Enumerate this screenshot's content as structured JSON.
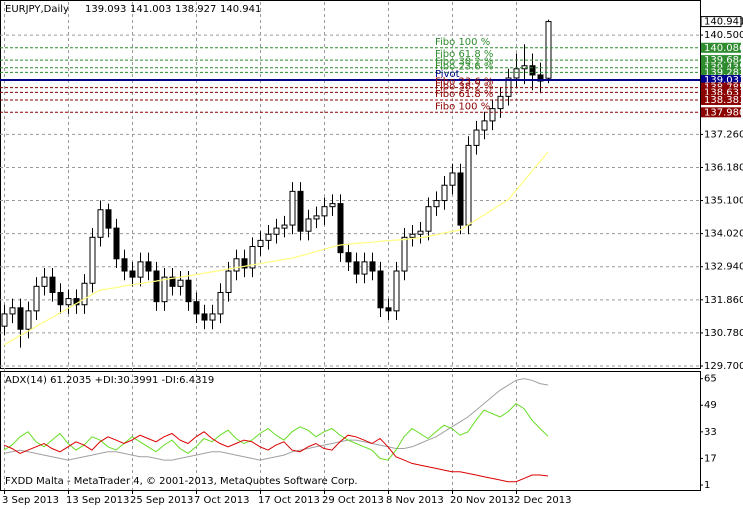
{
  "chart_data": [
    {
      "type": "candlestick",
      "title": "EURJPY,Daily",
      "categories": [
        "3 Sep 2013",
        null,
        null,
        null,
        null,
        null,
        null,
        null,
        "13 Sep 2013",
        null,
        null,
        null,
        null,
        null,
        null,
        null,
        "25 Sep 2013",
        null,
        null,
        null,
        null,
        null,
        null,
        null,
        "7 Oct 2013",
        null,
        null,
        null,
        null,
        null,
        null,
        null,
        "17 Oct 2013",
        null,
        null,
        null,
        null,
        null,
        null,
        null,
        "29 Oct 2013",
        null,
        null,
        null,
        null,
        null,
        null,
        null,
        "8 Nov 2013",
        null,
        null,
        null,
        null,
        null,
        null,
        null,
        "20 Nov 2013",
        null,
        null,
        null,
        null,
        null,
        null,
        null,
        "2 Dec 2013",
        null,
        null,
        null,
        null
      ],
      "open": [
        131.0,
        131.4,
        131.6,
        130.9,
        131.5,
        132.3,
        132.6,
        132.1,
        131.7,
        131.9,
        131.7,
        132.4,
        133.9,
        134.8,
        134.2,
        133.2,
        132.8,
        132.6,
        133.1,
        132.8,
        131.8,
        132.6,
        132.3,
        132.5,
        131.8,
        131.4,
        131.2,
        131.4,
        132.1,
        132.8,
        133.2,
        132.9,
        133.6,
        133.8,
        134.0,
        134.2,
        134.3,
        135.4,
        134.1,
        134.5,
        134.6,
        134.9,
        135.0,
        133.4,
        133.1,
        132.7,
        133.1,
        132.8,
        131.6,
        131.5,
        132.8,
        133.9,
        134.0,
        134.1,
        134.9,
        135.1,
        135.6,
        136.0,
        134.3,
        136.9,
        137.4,
        137.7,
        138.1,
        138.5,
        139.1,
        139.4,
        139.5,
        139.2,
        139.093
      ],
      "high": [
        131.7,
        131.9,
        131.9,
        131.8,
        132.6,
        132.9,
        132.9,
        132.4,
        132.2,
        132.2,
        132.7,
        134.2,
        135.1,
        135.0,
        134.5,
        133.5,
        133.1,
        133.4,
        133.4,
        133.1,
        132.9,
        132.9,
        132.8,
        132.8,
        132.1,
        131.7,
        131.7,
        132.4,
        133.1,
        133.5,
        133.5,
        133.9,
        134.1,
        134.3,
        134.5,
        134.6,
        135.7,
        135.7,
        134.8,
        134.9,
        135.2,
        135.3,
        135.3,
        133.7,
        133.4,
        133.4,
        133.4,
        133.1,
        131.9,
        133.1,
        134.2,
        134.3,
        134.4,
        135.2,
        135.4,
        135.9,
        136.3,
        136.3,
        137.2,
        137.7,
        138.0,
        138.4,
        138.8,
        139.4,
        139.9,
        140.2,
        139.9,
        139.6,
        141.003
      ],
      "low": [
        130.7,
        131.1,
        130.3,
        130.6,
        131.2,
        132.0,
        131.8,
        131.4,
        131.4,
        131.4,
        131.4,
        132.1,
        133.6,
        133.9,
        132.9,
        132.5,
        132.3,
        132.3,
        132.5,
        131.5,
        131.5,
        132.0,
        132.0,
        131.5,
        131.1,
        130.9,
        130.9,
        131.1,
        131.8,
        132.5,
        132.6,
        132.6,
        133.3,
        133.5,
        133.7,
        133.9,
        134.0,
        133.8,
        133.8,
        134.2,
        134.3,
        134.6,
        133.1,
        132.8,
        132.4,
        132.4,
        132.5,
        131.3,
        131.2,
        131.2,
        132.5,
        133.6,
        133.7,
        133.8,
        134.6,
        134.8,
        135.3,
        134.0,
        134.0,
        136.6,
        137.1,
        137.4,
        137.8,
        138.2,
        138.8,
        138.9,
        138.7,
        138.6,
        138.927
      ],
      "close": [
        131.4,
        131.6,
        130.9,
        131.5,
        132.3,
        132.6,
        132.1,
        131.7,
        131.9,
        131.7,
        132.4,
        133.9,
        134.8,
        134.2,
        133.2,
        132.8,
        132.6,
        133.1,
        132.8,
        131.8,
        132.6,
        132.3,
        132.5,
        131.8,
        131.4,
        131.2,
        131.4,
        132.1,
        132.8,
        133.2,
        132.9,
        133.6,
        133.8,
        134.0,
        134.2,
        134.3,
        135.4,
        134.1,
        134.5,
        134.6,
        134.9,
        135.0,
        133.4,
        133.1,
        132.7,
        133.1,
        132.8,
        131.6,
        131.5,
        132.8,
        133.9,
        134.0,
        134.1,
        134.9,
        135.1,
        135.6,
        136.0,
        134.3,
        136.9,
        137.4,
        137.7,
        138.1,
        138.5,
        139.1,
        139.4,
        139.5,
        139.2,
        139.0,
        140.941
      ],
      "up_color": "#ffffff",
      "down_color": "#000000",
      "ma": {
        "color": "#ffff80",
        "values": [
          130.39,
          130.54,
          130.69,
          130.84,
          130.99,
          131.14,
          131.28,
          131.43,
          131.58,
          131.73,
          131.88,
          132.03,
          132.18,
          132.22,
          132.26,
          132.31,
          132.35,
          132.39,
          132.43,
          132.47,
          132.52,
          132.56,
          132.6,
          132.64,
          132.68,
          132.73,
          132.77,
          132.82,
          132.86,
          132.91,
          132.95,
          133.0,
          133.04,
          133.09,
          133.13,
          133.18,
          133.22,
          133.29,
          133.36,
          133.44,
          133.51,
          133.58,
          133.65,
          133.67,
          133.7,
          133.72,
          133.74,
          133.77,
          133.79,
          133.81,
          133.83,
          133.86,
          133.88,
          133.93,
          133.98,
          134.04,
          134.09,
          134.14,
          134.3,
          134.47,
          134.63,
          134.79,
          134.96,
          135.12,
          135.43,
          135.74,
          136.06,
          136.37,
          136.68
        ]
      },
      "ylim": [
        129.635,
        141.58
      ],
      "yticks": [
        {
          "value": 129.7,
          "label": "129.700"
        },
        {
          "value": 130.78,
          "label": "130.780"
        },
        {
          "value": 131.86,
          "label": "131.860"
        },
        {
          "value": 132.94,
          "label": "132.940"
        },
        {
          "value": 134.02,
          "label": "134.020"
        },
        {
          "value": 135.1,
          "label": "135.100"
        },
        {
          "value": 136.18,
          "label": "136.180"
        },
        {
          "value": 137.26,
          "label": "137.260"
        },
        {
          "value": 140.5,
          "label": "140.500"
        }
      ],
      "grid": true,
      "levels": {
        "names": [
          "Fibo 100 %",
          "Fibo 61.8 %",
          "Fibo 38.2 %",
          "Fibo 23.6 %",
          "Pivot",
          "Fibo 23.6 %",
          "Fibo 38.2 %",
          "Fibo 61.8 %",
          "Fibo 100 %"
        ],
        "values": [
          140.086,
          139.684,
          139.435,
          139.282,
          139.033,
          138.785,
          138.631,
          138.383,
          137.98
        ],
        "value_labels": [
          "140.086",
          "139.684",
          "139.435",
          "139.282",
          "139.033",
          "138.785",
          "138.631",
          "138.383",
          "137.980"
        ],
        "colors": [
          "#2e8b2e",
          "#2e8b2e",
          "#2e8b2e",
          "#2e8b2e",
          "#00008b",
          "#8b0000",
          "#8b0000",
          "#8b0000",
          "#8b0000"
        ]
      }
    },
    {
      "type": "line",
      "title": "ADX(14) 61.2035 +DI:30.3991 -DI:6.4319",
      "series": [
        {
          "color": "#a0a0a0",
          "values": [
            20,
            21,
            22,
            21,
            20,
            19,
            18,
            17,
            16,
            17,
            18,
            19,
            20,
            21,
            21,
            20,
            19,
            18,
            18,
            17,
            16,
            16,
            17,
            18,
            19,
            20,
            21,
            21,
            20,
            19,
            18,
            17,
            16,
            17,
            18,
            19,
            21,
            22,
            23,
            24,
            25,
            26,
            27,
            28,
            28,
            27,
            26,
            25,
            24,
            23,
            23,
            24,
            26,
            28,
            30,
            33,
            36,
            39,
            42,
            46,
            50,
            54,
            58,
            61,
            64,
            65,
            64,
            62,
            61.2035
          ]
        },
        {
          "color": "#66dd22",
          "values": [
            22,
            25,
            30,
            33,
            27,
            24,
            28,
            32,
            26,
            22,
            25,
            30,
            28,
            24,
            22,
            26,
            30,
            27,
            24,
            21,
            25,
            28,
            23,
            20,
            24,
            29,
            27,
            31,
            34,
            29,
            26,
            28,
            32,
            35,
            31,
            28,
            33,
            36,
            34,
            30,
            33,
            35,
            31,
            28,
            26,
            24,
            22,
            17,
            16,
            22,
            30,
            35,
            32,
            29,
            33,
            37,
            35,
            31,
            33,
            40,
            46,
            44,
            42,
            45,
            50,
            47,
            40,
            35,
            30.3991
          ]
        },
        {
          "color": "#dd0000",
          "values": [
            25,
            23,
            20,
            22,
            24,
            26,
            23,
            21,
            24,
            27,
            25,
            22,
            27,
            30,
            28,
            26,
            28,
            31,
            29,
            27,
            30,
            32,
            28,
            26,
            30,
            33,
            29,
            26,
            24,
            26,
            28,
            27,
            24,
            22,
            25,
            27,
            22,
            21,
            24,
            26,
            23,
            22,
            27,
            31,
            30,
            28,
            26,
            29,
            24,
            18,
            16,
            14,
            13,
            12,
            11,
            10,
            9,
            9,
            8,
            7,
            6,
            5,
            4,
            3,
            3,
            5,
            7,
            7,
            6.4319
          ]
        }
      ],
      "ylim": [
        -2,
        69
      ],
      "yticks": [
        1,
        17,
        33,
        49,
        65
      ]
    }
  ],
  "footer": "FXDD Malta - MetaTrader 4, © 2001-2013, MetaQuotes Software Corp."
}
